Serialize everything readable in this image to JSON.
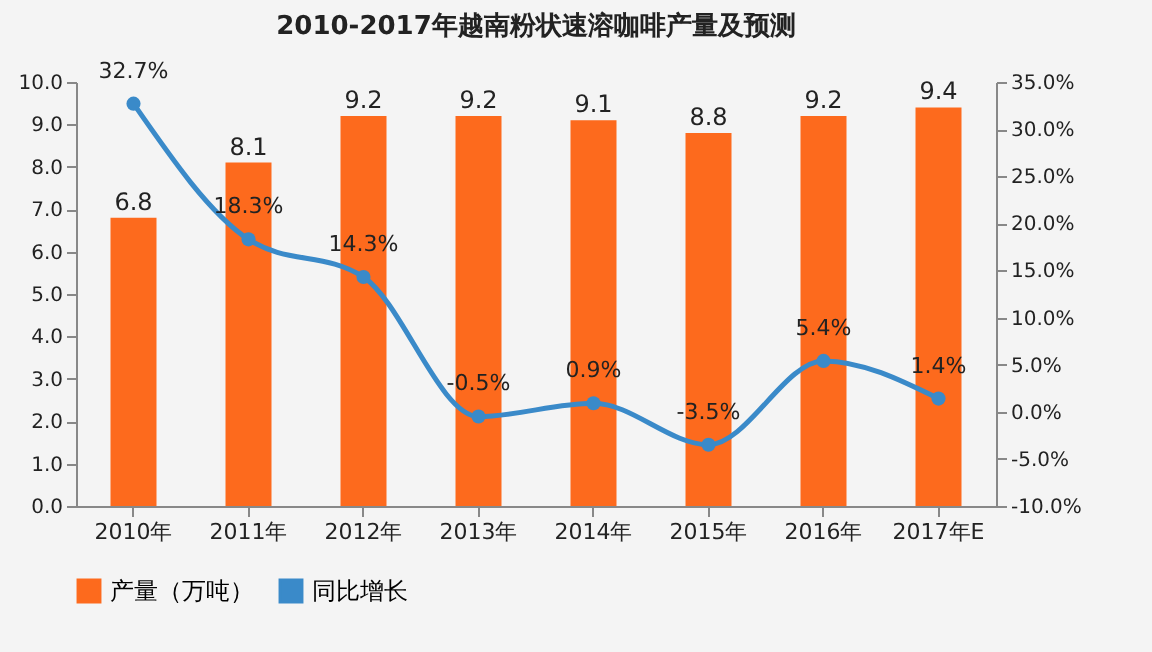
{
  "chart_data": {
    "type": "bar",
    "title": "2010-2017年越南粉状速溶咖啡产量及预测",
    "categories": [
      "2010年",
      "2011年",
      "2012年",
      "2013年",
      "2014年",
      "2015年",
      "2016年",
      "2017年E"
    ],
    "series": [
      {
        "name": "产量（万吨）",
        "color": "#fd6a1d",
        "values": [
          6.8,
          8.1,
          9.2,
          9.2,
          9.1,
          8.8,
          9.2,
          9.4
        ],
        "value_labels": [
          "6.8",
          "8.1",
          "9.2",
          "9.2",
          "9.1",
          "8.8",
          "9.2",
          "9.4"
        ]
      },
      {
        "name": "同比增长",
        "type": "line",
        "axis": "y2",
        "color": "#3a8ac9",
        "values": [
          32.7,
          18.3,
          14.3,
          -0.5,
          0.9,
          -3.5,
          5.4,
          1.4
        ],
        "value_labels": [
          "32.7%",
          "18.3%",
          "14.3%",
          "-0.5%",
          "0.9%",
          "-3.5%",
          "5.4%",
          "1.4%"
        ]
      }
    ],
    "ylim": [
      0,
      10
    ],
    "yticks": [
      {
        "value": 0,
        "label": "0.0"
      },
      {
        "value": 1,
        "label": "1.0"
      },
      {
        "value": 2,
        "label": "2.0"
      },
      {
        "value": 3,
        "label": "3.0"
      },
      {
        "value": 4,
        "label": "4.0"
      },
      {
        "value": 5,
        "label": "5.0"
      },
      {
        "value": 6,
        "label": "6.0"
      },
      {
        "value": 7,
        "label": "7.0"
      },
      {
        "value": 8,
        "label": "8.0"
      },
      {
        "value": 9,
        "label": "9.0"
      },
      {
        "value": 10,
        "label": "10.0"
      }
    ],
    "y2lim": [
      -10,
      35
    ],
    "y2ticks": [
      {
        "value": -10,
        "label": "-10.0%"
      },
      {
        "value": -5,
        "label": "-5.0%"
      },
      {
        "value": 0,
        "label": "0.0%"
      },
      {
        "value": 5,
        "label": "5.0%"
      },
      {
        "value": 10,
        "label": "10.0%"
      },
      {
        "value": 15,
        "label": "15.0%"
      },
      {
        "value": 20,
        "label": "20.0%"
      },
      {
        "value": 25,
        "label": "25.0%"
      },
      {
        "value": 30,
        "label": "30.0%"
      },
      {
        "value": 35,
        "label": "35.0%"
      }
    ],
    "legend": "bottom",
    "marker": "circle",
    "grid": false
  }
}
